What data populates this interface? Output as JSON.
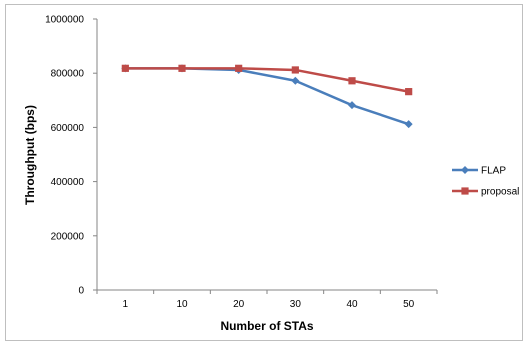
{
  "chart_data": {
    "type": "line",
    "categories": [
      "1",
      "10",
      "20",
      "30",
      "40",
      "50"
    ],
    "series": [
      {
        "name": "FLAP",
        "values": [
          818000,
          818000,
          812000,
          772000,
          682000,
          612000
        ],
        "color": "#4a7ebb",
        "marker": "diamond"
      },
      {
        "name": "proposal",
        "values": [
          818000,
          818000,
          818000,
          812000,
          772000,
          732000
        ],
        "color": "#be4b48",
        "marker": "square"
      }
    ],
    "xlabel": "Number of STAs",
    "ylabel": "Throughput (bps)",
    "ylim": [
      0,
      1000000
    ],
    "yticks": [
      "0",
      "200000",
      "400000",
      "600000",
      "800000",
      "1000000"
    ],
    "grid": false,
    "legend": "right"
  }
}
